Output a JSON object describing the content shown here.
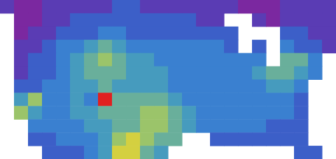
{
  "chart_data": {
    "type": "heatmap",
    "grid": false,
    "tick_labels": false,
    "zlim": [
      0,
      9
    ],
    "cells": [
      [
        1,
        0,
        0,
        1,
        1,
        1,
        1,
        1,
        2,
        2,
        1,
        1,
        1,
        1,
        1,
        1,
        1,
        0,
        0,
        0,
        1,
        1,
        1,
        1
      ],
      [
        null,
        0,
        0,
        1,
        1,
        2,
        2,
        2,
        2,
        2,
        2,
        2,
        2,
        2,
        1,
        1,
        null,
        null,
        1,
        0,
        1,
        1,
        1,
        1
      ],
      [
        null,
        0,
        1,
        1,
        2,
        2,
        2,
        3,
        3,
        2,
        2,
        2,
        2,
        2,
        2,
        2,
        2,
        null,
        null,
        null,
        2,
        2,
        1,
        1
      ],
      [
        null,
        1,
        1,
        2,
        3,
        3,
        4,
        5,
        4,
        3,
        3,
        3,
        3,
        3,
        3,
        3,
        2,
        null,
        2,
        null,
        3,
        2,
        2,
        1
      ],
      [
        null,
        1,
        2,
        2,
        3,
        4,
        5,
        6,
        5,
        4,
        4,
        3,
        3,
        3,
        3,
        3,
        3,
        3,
        3,
        null,
        5,
        5,
        3,
        null
      ],
      [
        null,
        1,
        2,
        2,
        3,
        4,
        5,
        5,
        5,
        4,
        4,
        4,
        3,
        3,
        3,
        3,
        3,
        3,
        4,
        5,
        5,
        4,
        3,
        null
      ],
      [
        null,
        2,
        2,
        3,
        3,
        4,
        4,
        5,
        4,
        4,
        4,
        4,
        3,
        3,
        3,
        3,
        3,
        3,
        3,
        4,
        4,
        3,
        null,
        null
      ],
      [
        null,
        4,
        6,
        3,
        3,
        4,
        3,
        9,
        5,
        5,
        5,
        5,
        4,
        3,
        3,
        3,
        3,
        3,
        3,
        3,
        3,
        2,
        null,
        null
      ],
      [
        null,
        6,
        4,
        3,
        3,
        4,
        4,
        5,
        5,
        5,
        6,
        6,
        5,
        4,
        3,
        3,
        3,
        3,
        3,
        3,
        3,
        2,
        null,
        null
      ],
      [
        null,
        null,
        3,
        3,
        3,
        3,
        4,
        4,
        5,
        5,
        6,
        6,
        5,
        4,
        3,
        3,
        3,
        3,
        3,
        2,
        2,
        2,
        null,
        null
      ],
      [
        null,
        null,
        2,
        2,
        3,
        3,
        3,
        4,
        6,
        7,
        6,
        5,
        5,
        null,
        null,
        2,
        2,
        2,
        2,
        2,
        2,
        2,
        null,
        null
      ],
      [
        null,
        null,
        null,
        2,
        2,
        2,
        3,
        4,
        7,
        7,
        5,
        4,
        null,
        null,
        null,
        null,
        null,
        null,
        null,
        null,
        null,
        2,
        2,
        null
      ]
    ]
  }
}
